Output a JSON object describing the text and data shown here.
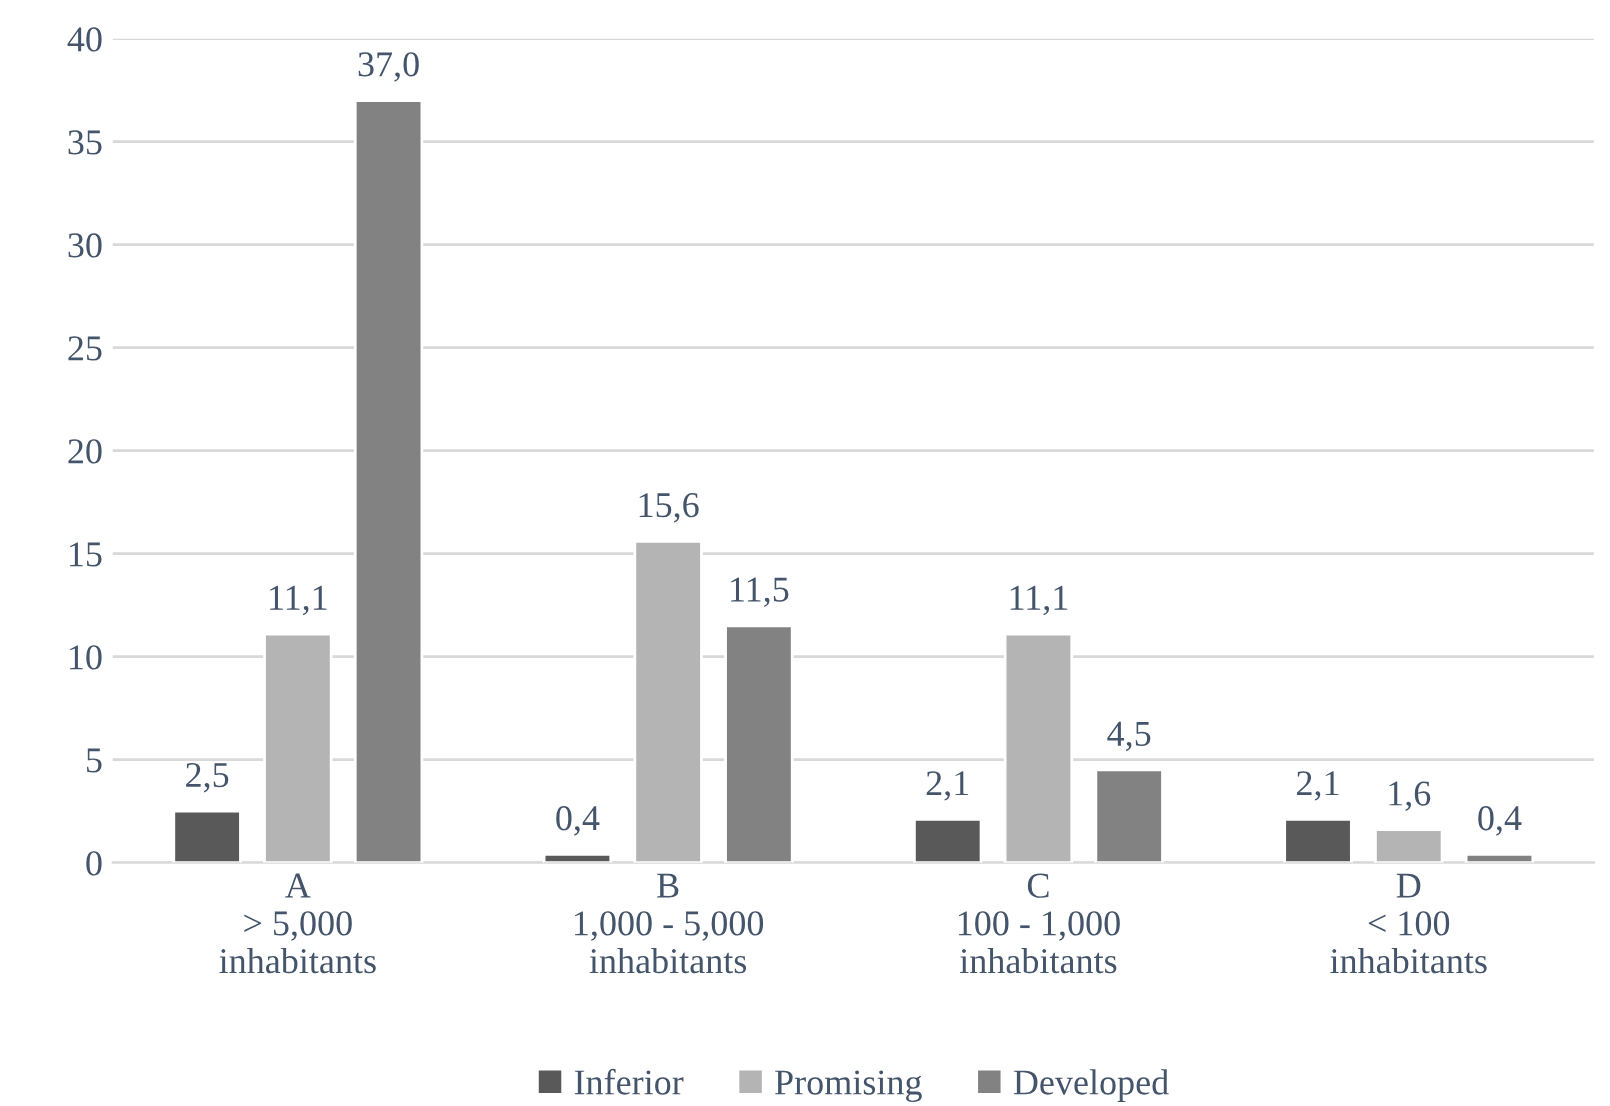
{
  "chart_data": {
    "type": "bar",
    "categories": [
      "A\n> 5,000\ninhabitants",
      "B\n1,000 - 5,000\ninhabitants",
      "C\n100 - 1,000\ninhabitants",
      "D\n< 100\ninhabitants"
    ],
    "series": [
      {
        "name": "Inferior",
        "color": "#595959",
        "values": [
          2.5,
          0.4,
          2.1,
          2.1
        ],
        "value_labels": [
          "2,5",
          "0,4",
          "2,1",
          "2,1"
        ]
      },
      {
        "name": "Promising",
        "color": "#b4b4b4",
        "values": [
          11.1,
          15.6,
          11.1,
          1.6
        ],
        "value_labels": [
          "11,1",
          "15,6",
          "11,1",
          "1,6"
        ]
      },
      {
        "name": "Developed",
        "color": "#828282",
        "values": [
          37.0,
          11.5,
          4.5,
          0.4
        ],
        "value_labels": [
          "37,0",
          "11,5",
          "4,5",
          "0,4"
        ]
      }
    ],
    "ylim": [
      0,
      40
    ],
    "yticks": [
      0,
      5,
      10,
      15,
      20,
      25,
      30,
      35,
      40
    ],
    "grid": "y",
    "legend": "bottom"
  }
}
